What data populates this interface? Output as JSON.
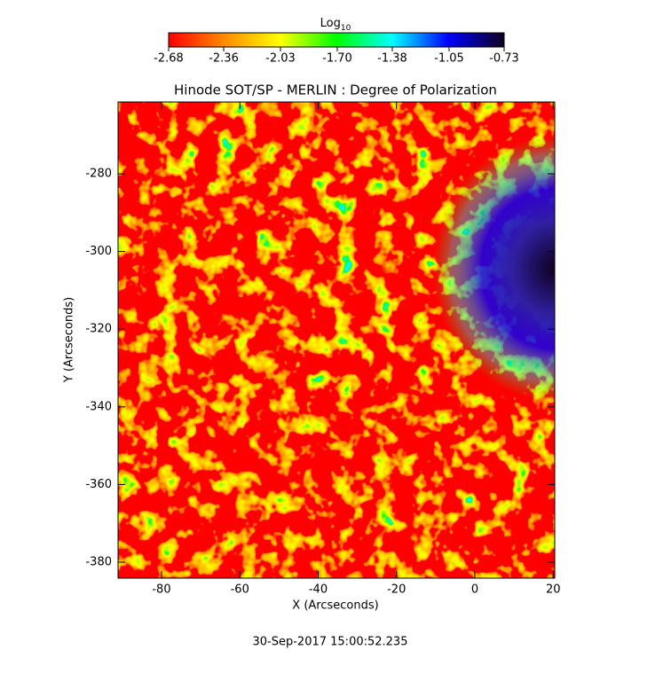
{
  "chart_data": {
    "type": "heatmap",
    "title": "Hinode SOT/SP - MERLIN : Degree of Polarization",
    "xlabel": "X (Arcseconds)",
    "ylabel": "Y (Arcseconds)",
    "xlim": [
      -91.1,
      20.4
    ],
    "ylim": [
      -384.1,
      -261.5
    ],
    "xticks": [
      -80,
      -60,
      -40,
      -20,
      0,
      20
    ],
    "yticks": [
      -380,
      -360,
      -340,
      -320,
      -300,
      -280
    ],
    "colorbar": {
      "label": "Log",
      "label_subscript": "10",
      "lim": [
        -2.68,
        -0.73
      ],
      "ticks": [
        -2.68,
        -2.36,
        -2.03,
        {
          "value": -1.7,
          "label": "-1.70"
        },
        -1.38,
        -1.05,
        -0.73
      ],
      "colors": [
        "#ff0000",
        "#ff8c00",
        "#ffff00",
        "#00ff00",
        "#00ffff",
        "#0000ff",
        "#100020"
      ]
    }
  },
  "footer": "30-Sep-2017 15:00:52.235"
}
